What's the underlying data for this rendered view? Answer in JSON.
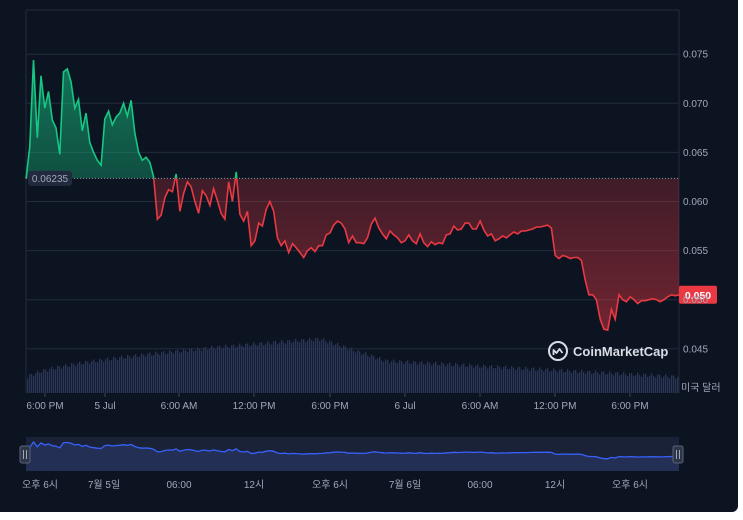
{
  "brand": {
    "name": "CoinMarketCap"
  },
  "currency_label": "미국 달러",
  "reference_label": "0.06235",
  "current_price_label": "0.050",
  "colors": {
    "background": "#0d1421",
    "up": "#16c784",
    "down": "#ea3943",
    "volume": "#2a3557",
    "navigator_line": "#3861fb",
    "grid": "#222b3d",
    "text": "#a1a7bb"
  },
  "chart_data": {
    "type": "area",
    "y_axis_ticks": [
      "0.075",
      "0.070",
      "0.065",
      "0.060",
      "0.055",
      "0.050",
      "0.045"
    ],
    "x_axis_ticks": [
      "6:00 PM",
      "5 Jul",
      "6:00 AM",
      "12:00 PM",
      "6:00 PM",
      "6 Jul",
      "6:00 AM",
      "12:00 PM",
      "6:00 PM"
    ],
    "navigator_ticks": [
      "오후 6시",
      "7월 5일",
      "06:00",
      "12시",
      "오후 6시",
      "7월 6일",
      "06:00",
      "12시",
      "오후 6시"
    ],
    "ylim": [
      0.0405,
      0.0795
    ],
    "reference_price": 0.06235,
    "last_price": 0.0505,
    "series": [
      {
        "values": [
          0.0623,
          0.0656,
          0.0744,
          0.0665,
          0.0728,
          0.0695,
          0.0712,
          0.0683,
          0.0675,
          0.0648,
          0.0732,
          0.0735,
          0.0722,
          0.0695,
          0.0704,
          0.0672,
          0.069,
          0.066,
          0.065,
          0.0642,
          0.0637,
          0.0684,
          0.0692,
          0.0678,
          0.0686,
          0.069,
          0.07,
          0.0687,
          0.0703,
          0.067,
          0.065,
          0.0642,
          0.0645,
          0.064,
          0.0625,
          0.0582,
          0.0586,
          0.0604,
          0.0612,
          0.061,
          0.0628,
          0.059,
          0.0608,
          0.062,
          0.0615,
          0.06,
          0.0588,
          0.0611,
          0.0606,
          0.0596,
          0.0613,
          0.0601,
          0.0588,
          0.0582,
          0.062,
          0.06,
          0.063,
          0.0587,
          0.058,
          0.059,
          0.0555,
          0.056,
          0.0578,
          0.0575,
          0.0592,
          0.06,
          0.059,
          0.0563,
          0.0555,
          0.056,
          0.0548,
          0.0557,
          0.0553,
          0.0548,
          0.0543,
          0.055,
          0.0553,
          0.0549,
          0.0555,
          0.0555,
          0.0566,
          0.0568,
          0.0576,
          0.058,
          0.0578,
          0.0572,
          0.0558,
          0.0565,
          0.0558,
          0.0558,
          0.0557,
          0.0563,
          0.0577,
          0.0583,
          0.0573,
          0.0567,
          0.0562,
          0.057,
          0.0566,
          0.0563,
          0.0558,
          0.056,
          0.0566,
          0.056,
          0.0557,
          0.0567,
          0.0558,
          0.0554,
          0.0559,
          0.0556,
          0.0558,
          0.0557,
          0.0566,
          0.0567,
          0.0575,
          0.0571,
          0.0572,
          0.0578,
          0.0578,
          0.0572,
          0.0572,
          0.058,
          0.0571,
          0.0565,
          0.0567,
          0.056,
          0.0562,
          0.0565,
          0.0563,
          0.0566,
          0.0569,
          0.0567,
          0.057,
          0.057,
          0.0571,
          0.0572,
          0.0574,
          0.0574,
          0.0575,
          0.0576,
          0.0573,
          0.0545,
          0.0542,
          0.0545,
          0.0544,
          0.0542,
          0.0543,
          0.0543,
          0.054,
          0.052,
          0.0505,
          0.0505,
          0.05,
          0.048,
          0.047,
          0.0469,
          0.049,
          0.048,
          0.0505,
          0.05,
          0.0498,
          0.0503,
          0.05,
          0.0496,
          0.0499,
          0.0499,
          0.05,
          0.0501,
          0.05,
          0.0498,
          0.05,
          0.0503,
          0.0505,
          0.0504,
          0.0505
        ]
      }
    ]
  }
}
